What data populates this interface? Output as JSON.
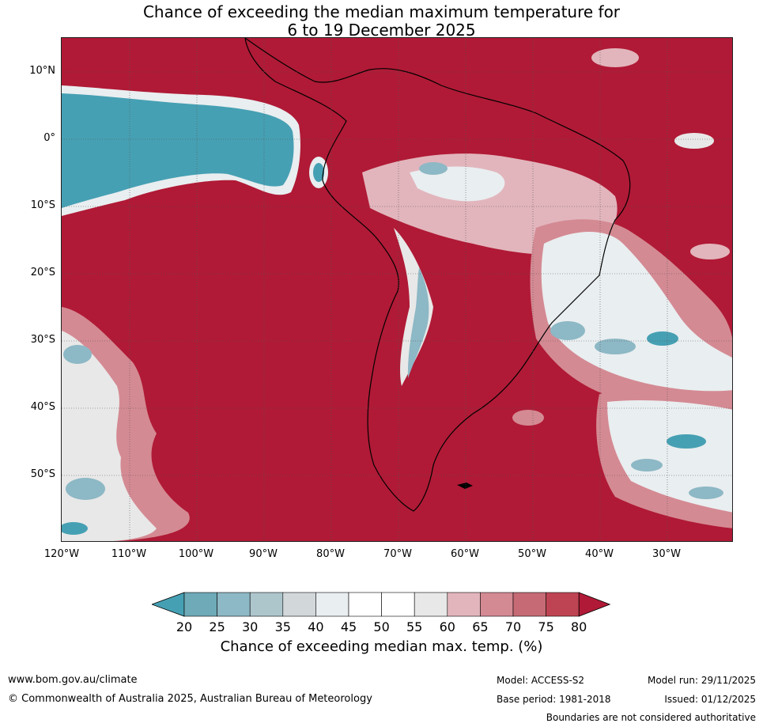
{
  "title_line1": "Chance of exceeding the median maximum temperature for",
  "title_line2": "6 to 19 December 2025",
  "lat_labels": [
    "10°N",
    "0°",
    "10°S",
    "20°S",
    "30°S",
    "40°S",
    "50°S"
  ],
  "lon_labels": [
    "120°W",
    "110°W",
    "100°W",
    "90°W",
    "80°W",
    "70°W",
    "60°W",
    "50°W",
    "40°W",
    "30°W"
  ],
  "colorbar": {
    "ticks": [
      "20",
      "25",
      "30",
      "35",
      "40",
      "45",
      "50",
      "55",
      "60",
      "65",
      "70",
      "75",
      "80"
    ],
    "colors": [
      "#46a0b3",
      "#6eaab7",
      "#8db8c5",
      "#adc6cc",
      "#d2d8da",
      "#e9eef0",
      "#ffffff",
      "#ffffff",
      "#e8e8e8",
      "#e2b5bc",
      "#d48a93",
      "#c66b75",
      "#bf4453",
      "#b01a36"
    ],
    "label": "Chance of exceeding median max. temp. (%)"
  },
  "footer": {
    "website": "www.bom.gov.au/climate",
    "copyright": "© Commonwealth of Australia 2025, Australian Bureau of Meteorology",
    "model": "Model: ACCESS-S2",
    "base_period": "Base period: 1981-2018",
    "model_run": "Model run: 29/11/2025",
    "issued": "Issued: 01/12/2025",
    "disclaimer": "Boundaries are not considered authoritative"
  }
}
